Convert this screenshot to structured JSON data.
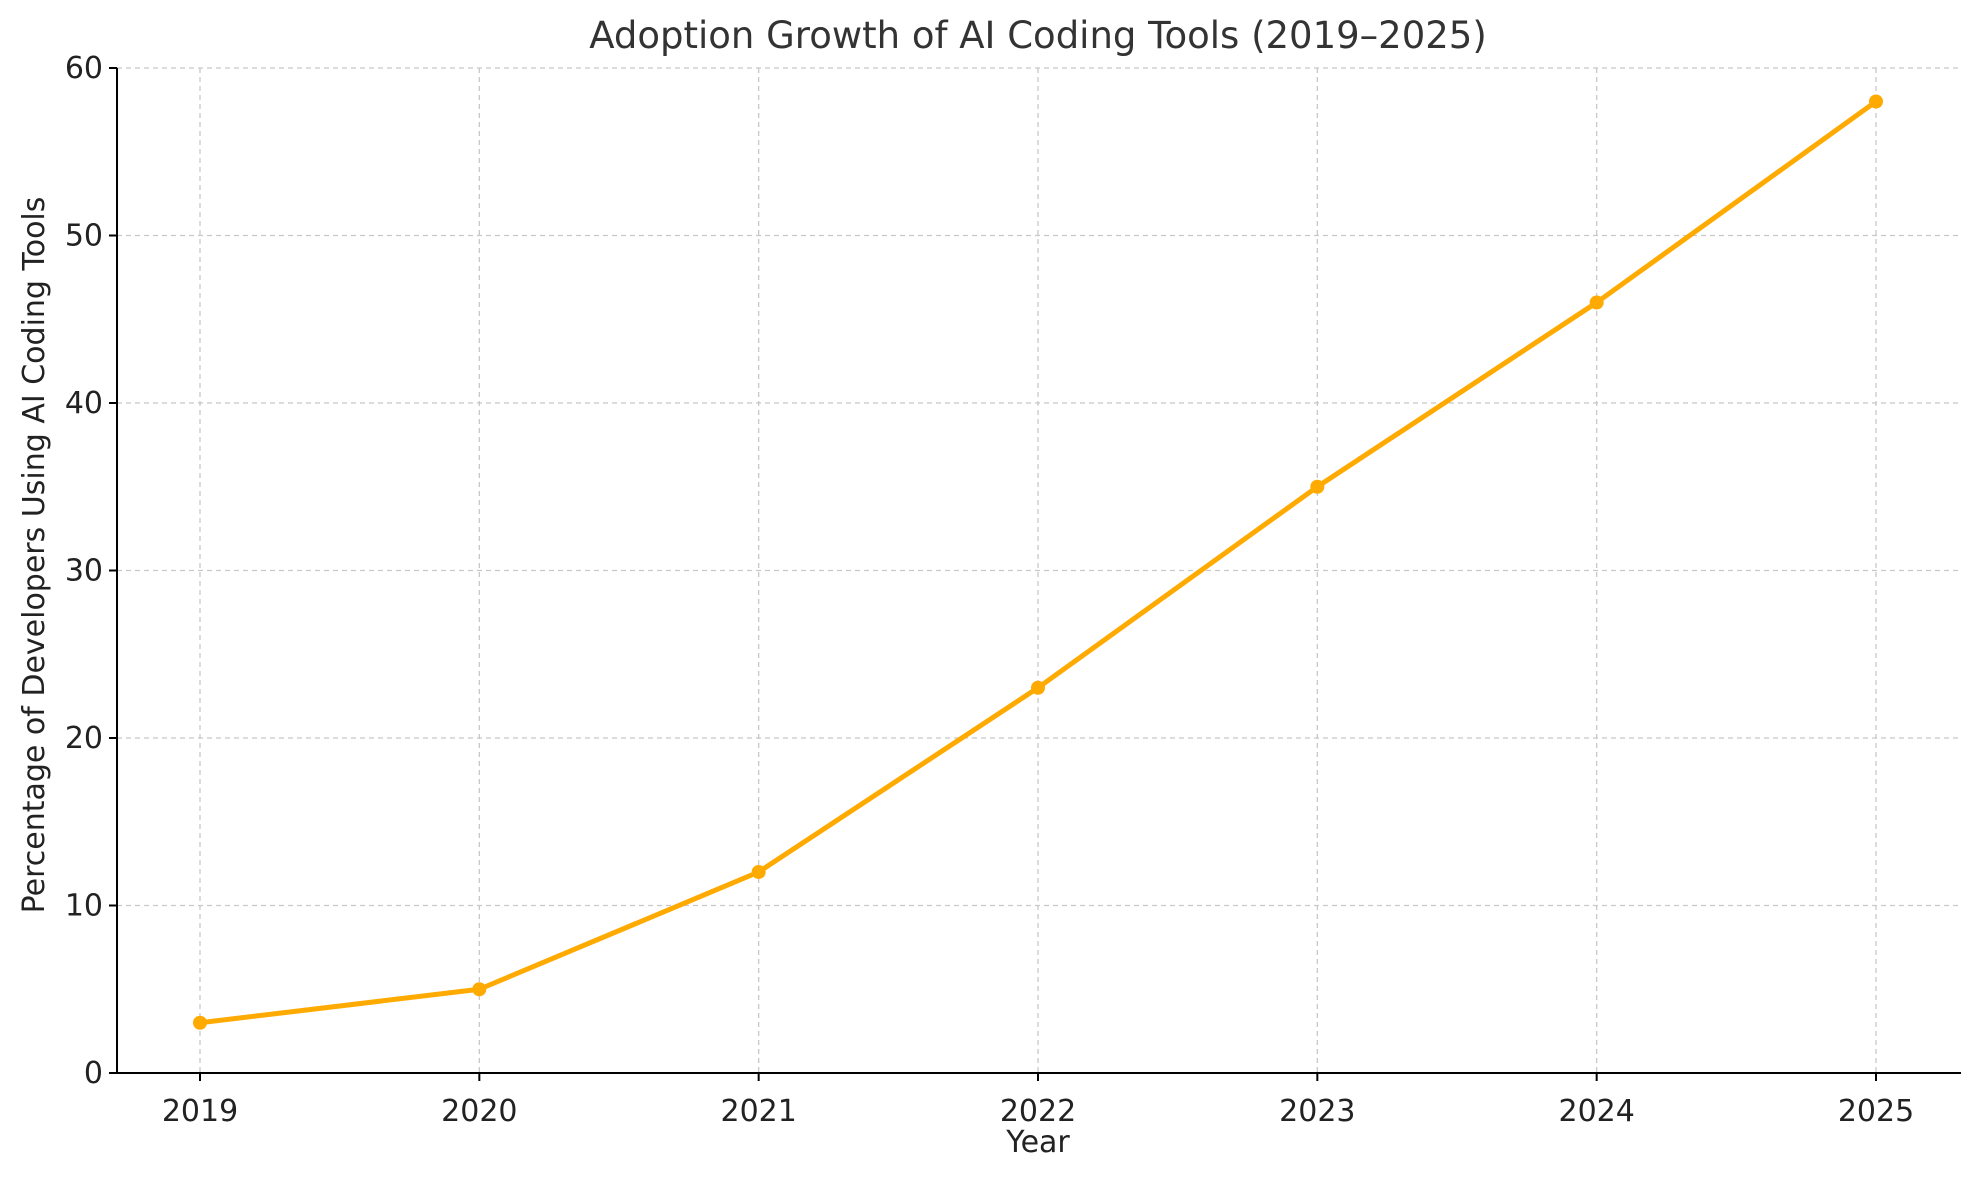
{
  "chart_data": {
    "type": "line",
    "title": "Adoption Growth of AI Coding Tools (2019–2025)",
    "xlabel": "Year",
    "ylabel": "Percentage of Developers Using AI Coding Tools",
    "categories": [
      "2019",
      "2020",
      "2021",
      "2022",
      "2023",
      "2024",
      "2025"
    ],
    "series": [
      {
        "values": [
          3,
          5,
          12,
          23,
          35,
          46,
          58
        ],
        "color": "#FFAA00",
        "marker": "circle"
      }
    ],
    "ylim": [
      0,
      60
    ],
    "yticks": [
      0,
      10,
      20,
      30,
      40,
      50,
      60
    ],
    "grid": true,
    "legend": "none"
  }
}
